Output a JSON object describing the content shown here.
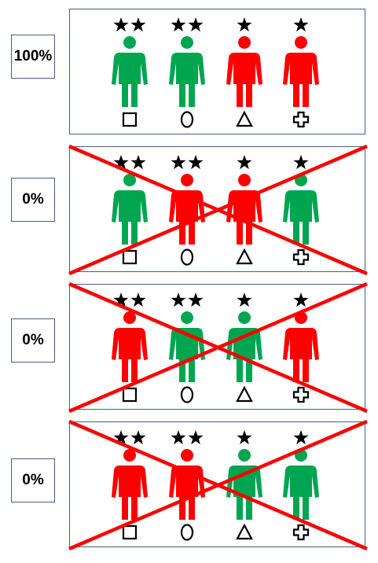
{
  "colors": {
    "green": "#00a550",
    "red": "#ff0000",
    "cross": "#ff0000",
    "border": "#41608a"
  },
  "slots": [
    {
      "stars": 2,
      "symbol": "square"
    },
    {
      "stars": 2,
      "symbol": "circle"
    },
    {
      "stars": 1,
      "symbol": "triangle"
    },
    {
      "stars": 1,
      "symbol": "cross-shape"
    }
  ],
  "rows": [
    {
      "label": "100%",
      "crossed": false,
      "people": [
        "green",
        "green",
        "red",
        "red"
      ]
    },
    {
      "label": "0%",
      "crossed": true,
      "people": [
        "green",
        "red",
        "red",
        "green"
      ]
    },
    {
      "label": "0%",
      "crossed": true,
      "people": [
        "red",
        "green",
        "green",
        "red"
      ]
    },
    {
      "label": "0%",
      "crossed": true,
      "people": [
        "red",
        "red",
        "green",
        "green"
      ]
    }
  ]
}
